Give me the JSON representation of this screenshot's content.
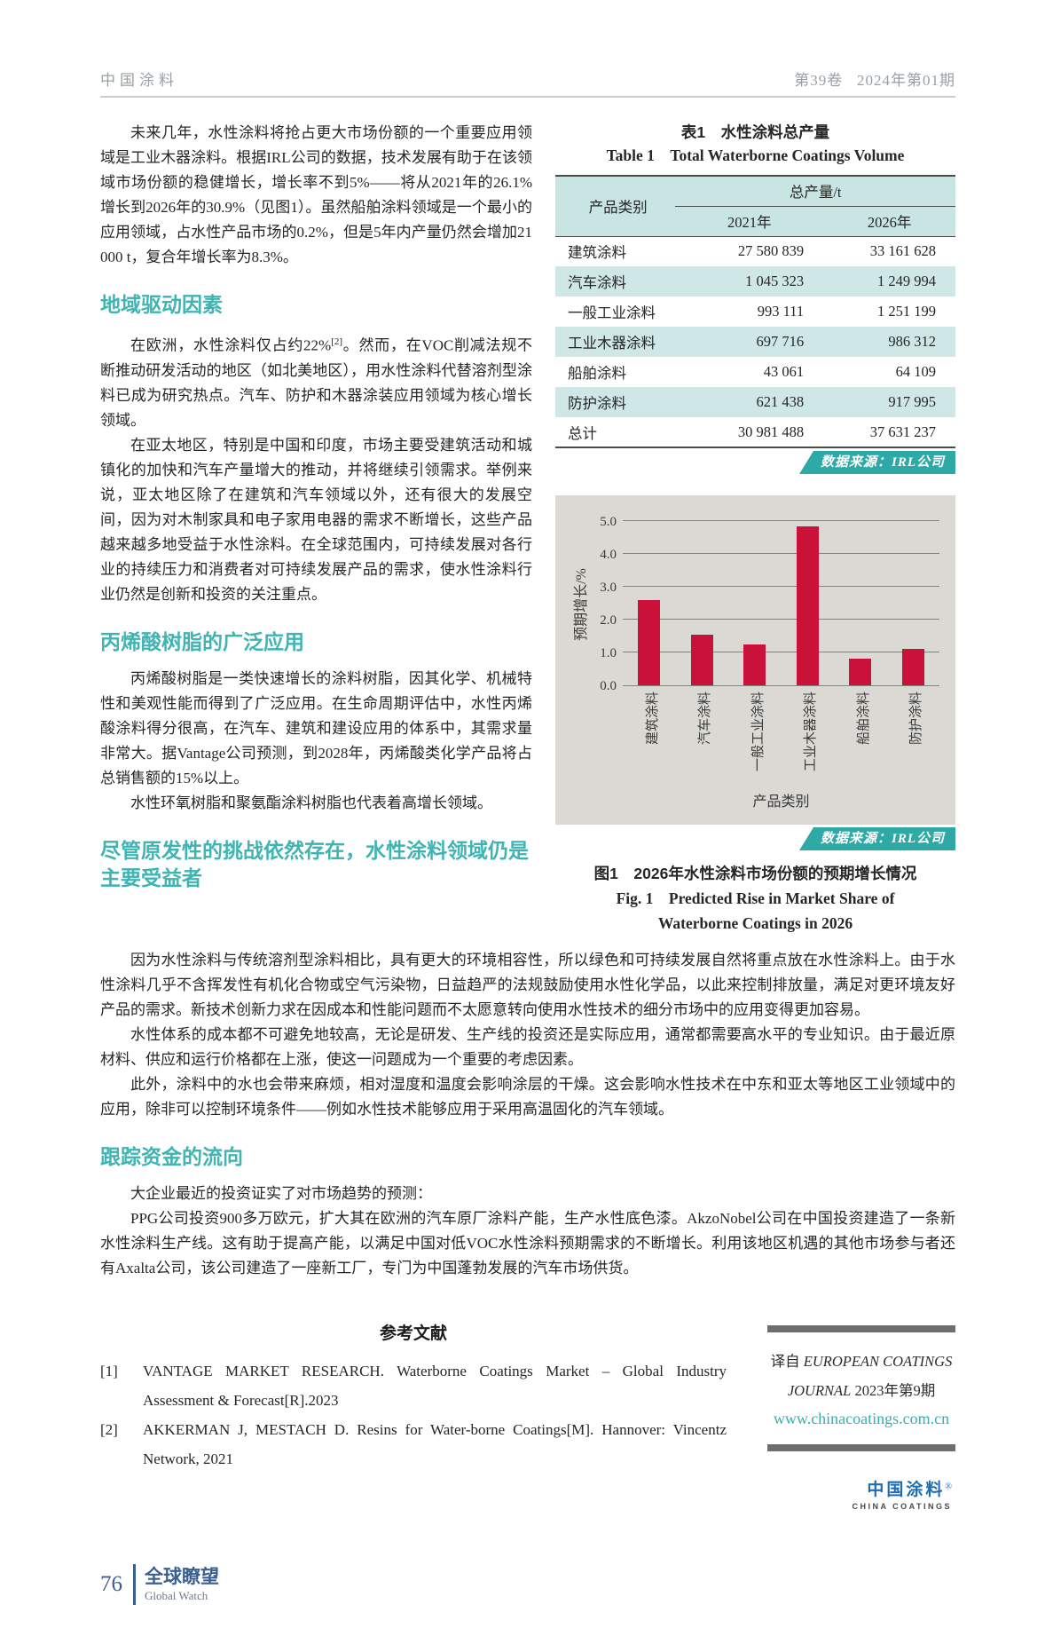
{
  "header": {
    "journal": "中国涂料",
    "issue": "第39卷   2024年第01期"
  },
  "left": {
    "intro": "未来几年，水性涂料将抢占更大市场份额的一个重要应用领域是工业木器涂料。根据IRL公司的数据，技术发展有助于在该领域市场份额的稳健增长，增长率不到5%——将从2021年的26.1%增长到2026年的30.9%（见图1）。虽然船舶涂料领域是一个最小的应用领域，占水性产品市场的0.2%，但是5年内产量仍然会增加21 000 t，复合年增长率为8.3%。",
    "h_region": "地域驱动因素",
    "region_para1_a": "在欧洲，水性涂料仅占约22%",
    "region_para1_sup": "[2]",
    "region_para1_b": "。然而，在VOC削减法规不断推动研发活动的地区（如北美地区），用水性涂料代替溶剂型涂料已成为研究热点。汽车、防护和木器涂装应用领域为核心增长领域。",
    "region_para2": "在亚太地区，特别是中国和印度，市场主要受建筑活动和城镇化的加快和汽车产量增大的推动，并将继续引领需求。举例来说，亚太地区除了在建筑和汽车领域以外，还有很大的发展空间，因为对木制家具和电子家用电器的需求不断增长，这些产品越来越多地受益于水性涂料。在全球范围内，可持续发展对各行业的持续压力和消费者对可持续发展产品的需求，使水性涂料行业仍然是创新和投资的关注重点。",
    "h_acrylic": "丙烯酸树脂的广泛应用",
    "acrylic_para1": "丙烯酸树脂是一类快速增长的涂料树脂，因其化学、机械特性和美观性能而得到了广泛应用。在生命周期评估中，水性丙烯酸涂料得分很高，在汽车、建筑和建设应用的体系中，其需求量非常大。据Vantage公司预测，到2028年，丙烯酸类化学产品将占总销售额的15%以上。",
    "acrylic_para2": "水性环氧树脂和聚氨酯涂料树脂也代表着高增长领域。",
    "h_challenge": "尽管原发性的挑战依然存在，水性涂料领域仍是主要受益者"
  },
  "table1": {
    "title_cn": "表1　水性涂料总产量",
    "title_en": "Table 1　Total Waterborne Coatings Volume",
    "col_category": "产品类别",
    "col_total": "总产量/t",
    "col_2021": "2021年",
    "col_2026": "2026年",
    "rows": [
      {
        "category": "建筑涂料",
        "y2021": "27 580 839",
        "y2026": "33 161 628"
      },
      {
        "category": "汽车涂料",
        "y2021": "1 045 323",
        "y2026": "1 249 994"
      },
      {
        "category": "一般工业涂料",
        "y2021": "993 111",
        "y2026": "1 251 199"
      },
      {
        "category": "工业木器涂料",
        "y2021": "697 716",
        "y2026": "986 312"
      },
      {
        "category": "船舶涂料",
        "y2021": "43 061",
        "y2026": "64 109"
      },
      {
        "category": "防护涂料",
        "y2021": "621 438",
        "y2026": "917 995"
      }
    ],
    "total_row": {
      "category": "总计",
      "y2021": "30 981 488",
      "y2026": "37 631 237"
    },
    "source": "数据来源：IRL公司"
  },
  "chart_data": {
    "type": "bar",
    "title": "图1 2026年水性涂料市场份额的预期增长情况",
    "categories": [
      "建筑涂料",
      "汽车涂料",
      "一般工业涂料",
      "工业木器涂料",
      "船舶涂料",
      "防护涂料"
    ],
    "values": [
      2.6,
      1.55,
      1.25,
      4.85,
      0.8,
      1.1
    ],
    "xlabel": "产品类别",
    "ylabel": "预期增长/%",
    "ylim": [
      0,
      5
    ],
    "yticks": [
      "0.0",
      "1.0",
      "2.0",
      "3.0",
      "4.0",
      "5.0"
    ],
    "grid": "horizontal",
    "legend": "none",
    "bar_color": "#c9113a",
    "source": "数据来源：IRL公司"
  },
  "figure1": {
    "caption_cn": "图1　2026年水性涂料市场份额的预期增长情况",
    "caption_en_1": "Fig. 1　Predicted Rise in Market Share of",
    "caption_en_2": "Waterborne Coatings in 2026"
  },
  "fullw": {
    "para1": "因为水性涂料与传统溶剂型涂料相比，具有更大的环境相容性，所以绿色和可持续发展自然将重点放在水性涂料上。由于水性涂料几乎不含挥发性有机化合物或空气污染物，日益趋严的法规鼓励使用水性化学品，以此来控制排放量，满足对更环境友好产品的需求。新技术创新力求在因成本和性能问题而不太愿意转向使用水性技术的细分市场中的应用变得更加容易。",
    "para2": "水性体系的成本都不可避免地较高，无论是研发、生产线的投资还是实际应用，通常都需要高水平的专业知识。由于最近原材料、供应和运行价格都在上涨，使这一问题成为一个重要的考虑因素。",
    "para3": "此外，涂料中的水也会带来麻烦，相对湿度和温度会影响涂层的干燥。这会影响水性技术在中东和亚太等地区工业领域中的应用，除非可以控制环境条件——例如水性技术能够应用于采用高温固化的汽车领域。",
    "h_money": "跟踪资金的流向",
    "para4": "大企业最近的投资证实了对市场趋势的预测：",
    "para5": "PPG公司投资900多万欧元，扩大其在欧洲的汽车原厂涂料产能，生产水性底色漆。AkzoNobel公司在中国投资建造了一条新水性涂料生产线。这有助于提高产能，以满足中国对低VOC水性涂料预期需求的不断增长。利用该地区机遇的其他市场参与者还有Axalta公司，该公司建造了一座新工厂，专门为中国蓬勃发展的汽车市场供货。"
  },
  "references": {
    "heading": "参考文献",
    "items": [
      {
        "num": "[1]",
        "text": "VANTAGE MARKET RESEARCH. Waterborne Coatings Market – Global Industry Assessment & Forecast[R].2023"
      },
      {
        "num": "[2]",
        "text": "AKKERMAN J, MESTACH D. Resins for Water-borne Coatings[M]. Hannover: Vincentz Network, 2021"
      }
    ]
  },
  "source_box": {
    "line1_cn": "译自 ",
    "line1_en": "EUROPEAN COATINGS",
    "line2_en": "JOURNAL",
    "line2_cn": " 2023年第9期",
    "url": "www.chinacoatings.com.cn",
    "logo_cn": "中国涂料",
    "logo_reg": "®",
    "logo_en": "CHINA COATINGS"
  },
  "footer": {
    "page_number": "76",
    "section_cn": "全球瞭望",
    "section_en": "Global Watch"
  },
  "colors": {
    "accent_teal": "#3fb4b2",
    "table_tint": "#cfe8e7",
    "badge_teal": "#2fa9a5",
    "bar_red": "#c9113a",
    "chart_bg": "#dad9d4",
    "footer_blue": "#3c5f90",
    "logo_blue": "#1f6cb0"
  }
}
